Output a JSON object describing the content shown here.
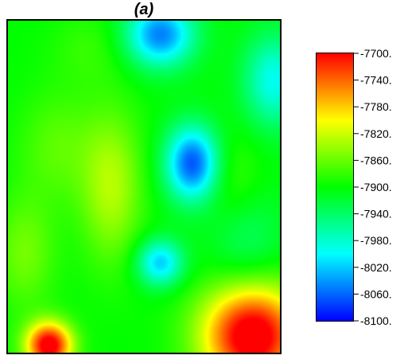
{
  "chart_data": {
    "type": "heatmap",
    "title": "(a)",
    "colorscale": [
      "#0000ff",
      "#00ffff",
      "#00ff00",
      "#ffff00",
      "#ff0000"
    ],
    "value_range": [
      -8100,
      -7700
    ],
    "colorbar_ticks": [
      "-7700.",
      "-7740.",
      "-7780.",
      "-7820.",
      "-7860.",
      "-7900.",
      "-7940.",
      "-7980.",
      "-8020.",
      "-8060.",
      "-8100."
    ],
    "colorbar_values": [
      -7700,
      -7740,
      -7780,
      -7820,
      -7860,
      -7900,
      -7940,
      -7980,
      -8020,
      -8060,
      -8100
    ],
    "x_range": [
      0,
      1
    ],
    "y_range": [
      0,
      1
    ],
    "base_value": -7900,
    "features": [
      {
        "x": 0.56,
        "y": 0.96,
        "sx": 0.09,
        "sy": 0.07,
        "amp": -150
      },
      {
        "x": 0.98,
        "y": 0.82,
        "sx": 0.08,
        "sy": 0.1,
        "amp": -95
      },
      {
        "x": 0.68,
        "y": 0.57,
        "sx": 0.07,
        "sy": 0.08,
        "amp": -170
      },
      {
        "x": 0.56,
        "y": 0.27,
        "sx": 0.06,
        "sy": 0.05,
        "amp": -120
      },
      {
        "x": 0.88,
        "y": 0.33,
        "sx": 0.1,
        "sy": 0.12,
        "amp": -40
      },
      {
        "x": 0.38,
        "y": 0.5,
        "sx": 0.08,
        "sy": 0.16,
        "amp": 70
      },
      {
        "x": 0.06,
        "y": 0.3,
        "sx": 0.08,
        "sy": 0.12,
        "amp": 45
      },
      {
        "x": 0.18,
        "y": 0.62,
        "sx": 0.1,
        "sy": 0.12,
        "amp": 35
      },
      {
        "x": 0.9,
        "y": 0.05,
        "sx": 0.13,
        "sy": 0.11,
        "amp": 230
      },
      {
        "x": 0.15,
        "y": 0.02,
        "sx": 0.06,
        "sy": 0.05,
        "amp": 220
      },
      {
        "x": 0.3,
        "y": 0.92,
        "sx": 0.1,
        "sy": 0.08,
        "amp": 20
      },
      {
        "x": 0.82,
        "y": 0.52,
        "sx": 0.08,
        "sy": 0.1,
        "amp": 30
      }
    ]
  }
}
